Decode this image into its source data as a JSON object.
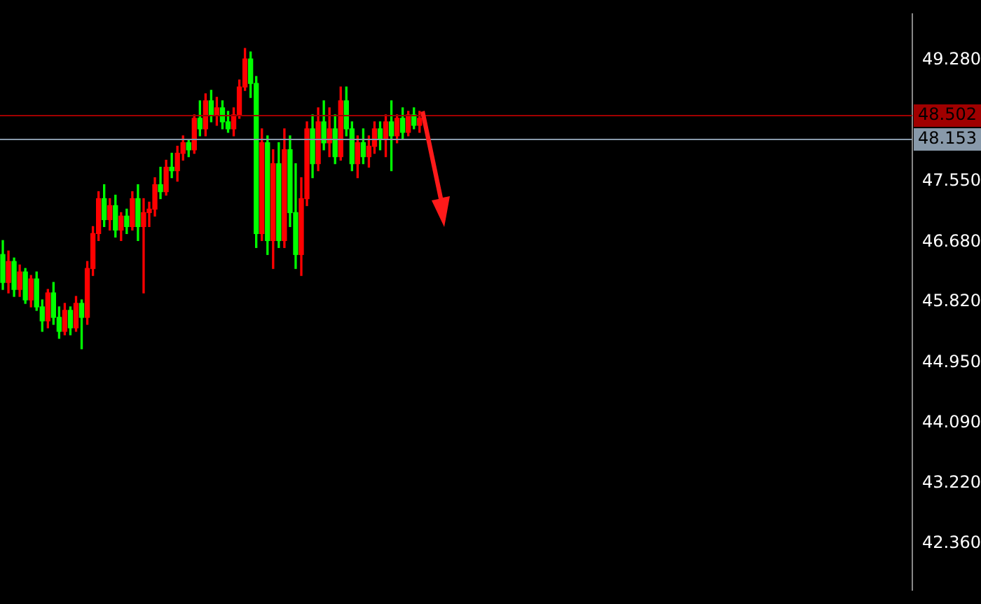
{
  "chart_data": {
    "type": "candlestick",
    "categories": [
      null,
      null,
      null,
      null,
      null,
      null,
      null,
      null,
      null,
      null,
      null,
      null,
      null,
      null,
      null,
      null,
      null,
      null,
      null,
      null,
      null,
      null,
      null,
      null,
      null,
      null,
      null,
      null,
      null,
      null,
      null,
      null,
      null,
      null,
      null,
      null,
      null,
      null,
      null,
      null,
      null,
      null,
      null,
      null,
      null,
      null,
      null,
      null,
      null,
      null,
      null,
      null,
      null,
      null,
      null,
      null,
      null,
      null,
      null,
      null,
      null,
      null,
      null,
      null,
      null,
      null,
      null,
      null,
      null,
      null,
      null,
      null,
      null,
      null,
      null,
      null,
      null,
      null,
      null,
      null,
      null,
      null,
      null,
      null,
      null,
      null,
      null,
      null,
      null,
      null,
      null,
      null,
      null,
      null,
      null,
      null,
      null,
      null,
      null,
      null,
      null,
      null,
      null,
      null,
      null,
      null,
      null,
      null,
      null,
      null,
      null,
      null,
      null,
      null,
      null,
      null,
      null,
      null,
      null,
      null,
      null,
      null,
      null,
      null,
      null,
      null,
      null,
      null,
      null,
      null,
      null,
      null,
      null,
      null,
      null,
      null,
      null,
      null,
      null,
      null,
      null,
      null,
      null,
      null,
      null,
      null,
      null,
      null,
      null,
      null,
      null,
      null,
      null,
      null,
      null,
      null,
      null,
      null,
      null,
      null,
      null,
      null
    ],
    "ohlc": [
      [
        46.5,
        46.7,
        46.0,
        46.1
      ],
      [
        46.1,
        46.55,
        45.95,
        46.4
      ],
      [
        46.4,
        46.45,
        45.9,
        46.0
      ],
      [
        46.0,
        46.35,
        45.9,
        46.25
      ],
      [
        46.25,
        46.3,
        45.8,
        45.85
      ],
      [
        45.85,
        46.2,
        45.75,
        46.15
      ],
      [
        46.15,
        46.25,
        45.7,
        45.75
      ],
      [
        45.75,
        45.85,
        45.4,
        45.55
      ],
      [
        45.55,
        46.0,
        45.45,
        45.95
      ],
      [
        45.95,
        46.1,
        45.5,
        45.6
      ],
      [
        45.6,
        45.75,
        45.3,
        45.4
      ],
      [
        45.4,
        45.8,
        45.35,
        45.7
      ],
      [
        45.7,
        45.75,
        45.35,
        45.45
      ],
      [
        45.45,
        45.9,
        45.4,
        45.8
      ],
      [
        45.8,
        45.85,
        45.15,
        45.6
      ],
      [
        45.6,
        46.4,
        45.5,
        46.3
      ],
      [
        46.3,
        46.9,
        46.2,
        46.8
      ],
      [
        46.8,
        47.4,
        46.7,
        47.3
      ],
      [
        47.3,
        47.5,
        46.9,
        47.0
      ],
      [
        47.0,
        47.3,
        46.85,
        47.2
      ],
      [
        47.2,
        47.35,
        46.75,
        46.85
      ],
      [
        46.85,
        47.1,
        46.7,
        47.05
      ],
      [
        47.05,
        47.15,
        46.8,
        46.9
      ],
      [
        46.9,
        47.4,
        46.85,
        47.3
      ],
      [
        47.3,
        47.5,
        46.7,
        46.9
      ],
      [
        46.9,
        47.3,
        45.95,
        47.1
      ],
      [
        47.1,
        47.25,
        46.9,
        47.15
      ],
      [
        47.15,
        47.6,
        47.05,
        47.5
      ],
      [
        47.5,
        47.75,
        47.3,
        47.4
      ],
      [
        47.4,
        47.85,
        47.35,
        47.75
      ],
      [
        47.75,
        47.95,
        47.6,
        47.7
      ],
      [
        47.7,
        48.05,
        47.55,
        47.95
      ],
      [
        47.95,
        48.2,
        47.85,
        48.1
      ],
      [
        48.1,
        48.15,
        47.9,
        48.0
      ],
      [
        48.0,
        48.5,
        47.95,
        48.45
      ],
      [
        48.45,
        48.7,
        48.2,
        48.3
      ],
      [
        48.3,
        48.8,
        48.2,
        48.7
      ],
      [
        48.7,
        48.85,
        48.4,
        48.5
      ],
      [
        48.5,
        48.75,
        48.35,
        48.6
      ],
      [
        48.6,
        48.7,
        48.3,
        48.4
      ],
      [
        48.4,
        48.55,
        48.25,
        48.3
      ],
      [
        48.3,
        48.6,
        48.2,
        48.5
      ],
      [
        48.5,
        49.0,
        48.45,
        48.9
      ],
      [
        48.9,
        49.45,
        48.85,
        49.3
      ],
      [
        49.3,
        49.4,
        48.75,
        48.95
      ],
      [
        48.95,
        49.05,
        46.6,
        46.8
      ],
      [
        46.8,
        48.3,
        46.7,
        48.1
      ],
      [
        48.1,
        48.2,
        46.5,
        46.7
      ],
      [
        46.7,
        48.0,
        46.3,
        47.8
      ],
      [
        47.8,
        48.1,
        46.6,
        46.7
      ],
      [
        46.7,
        48.3,
        46.6,
        48.0
      ],
      [
        48.0,
        48.2,
        46.9,
        47.1
      ],
      [
        47.1,
        47.8,
        46.3,
        46.5
      ],
      [
        46.5,
        47.6,
        46.2,
        47.3
      ],
      [
        47.3,
        48.4,
        47.2,
        48.3
      ],
      [
        48.3,
        48.5,
        47.6,
        47.8
      ],
      [
        47.8,
        48.6,
        47.7,
        48.4
      ],
      [
        48.4,
        48.7,
        48.0,
        48.1
      ],
      [
        48.1,
        48.6,
        47.9,
        48.3
      ],
      [
        48.3,
        48.5,
        47.8,
        47.9
      ],
      [
        47.9,
        48.9,
        47.85,
        48.7
      ],
      [
        48.7,
        48.9,
        48.2,
        48.3
      ],
      [
        48.3,
        48.4,
        47.7,
        47.8
      ],
      [
        47.8,
        48.2,
        47.6,
        48.1
      ],
      [
        48.1,
        48.3,
        47.8,
        47.9
      ],
      [
        47.9,
        48.2,
        47.75,
        48.05
      ],
      [
        48.05,
        48.4,
        47.95,
        48.3
      ],
      [
        48.3,
        48.4,
        48.0,
        48.15
      ],
      [
        48.15,
        48.5,
        47.9,
        48.4
      ],
      [
        48.4,
        48.7,
        47.7,
        48.2
      ],
      [
        48.2,
        48.5,
        48.1,
        48.45
      ],
      [
        48.45,
        48.6,
        48.15,
        48.25
      ],
      [
        48.25,
        48.55,
        48.2,
        48.5
      ],
      [
        48.5,
        48.6,
        48.3,
        48.35
      ],
      [
        48.35,
        48.55,
        48.25,
        48.45
      ],
      null,
      null,
      null,
      null,
      null,
      null,
      null,
      null,
      null,
      null,
      null,
      null,
      null,
      null,
      null,
      null,
      null,
      null,
      null,
      null,
      null,
      null,
      null,
      null,
      null,
      null,
      null,
      null,
      null,
      null,
      null,
      null,
      null,
      null,
      null,
      null,
      null,
      null,
      null,
      null,
      null,
      null,
      null,
      null,
      null,
      null,
      null,
      null,
      null,
      null,
      null,
      null,
      null,
      null,
      null,
      null,
      null,
      null,
      null,
      null,
      null,
      null,
      null,
      null,
      null,
      null,
      null,
      null,
      null,
      null,
      null,
      null,
      null,
      null,
      null,
      null,
      null,
      null,
      null,
      null,
      null,
      null,
      null,
      null,
      null,
      null,
      null
    ],
    "colors": [
      "#00ff00",
      "#ff0000",
      "#00ff00",
      "#ff0000",
      "#00ff00",
      "#ff0000",
      "#00ff00",
      "#00ff00",
      "#ff0000",
      "#00ff00",
      "#00ff00",
      "#ff0000",
      "#00ff00",
      "#ff0000",
      "#00ff00",
      "#ff0000",
      "#ff0000",
      "#ff0000",
      "#00ff00",
      "#ff0000",
      "#00ff00",
      "#ff0000",
      "#00ff00",
      "#ff0000",
      "#00ff00",
      "#ff0000",
      "#ff0000",
      "#ff0000",
      "#00ff00",
      "#ff0000",
      "#00ff00",
      "#ff0000",
      "#ff0000",
      "#00ff00",
      "#ff0000",
      "#00ff00",
      "#ff0000",
      "#00ff00",
      "#ff0000",
      "#00ff00",
      "#00ff00",
      "#ff0000",
      "#ff0000",
      "#ff0000",
      "#00ff00",
      "#00ff00",
      "#ff0000",
      "#00ff00",
      "#ff0000",
      "#00ff00",
      "#ff0000",
      "#00ff00",
      "#00ff00",
      "#ff0000",
      "#ff0000",
      "#00ff00",
      "#ff0000",
      "#00ff00",
      "#ff0000",
      "#00ff00",
      "#ff0000",
      "#00ff00",
      "#00ff00",
      "#ff0000",
      "#00ff00",
      "#ff0000",
      "#ff0000",
      "#00ff00",
      "#ff0000",
      "#00ff00",
      "#ff0000",
      "#00ff00",
      "#ff0000",
      "#00ff00",
      "#ff0000",
      null,
      null,
      null,
      null,
      null,
      null,
      null,
      null,
      null,
      null,
      null,
      null,
      null,
      null,
      null,
      null,
      null,
      null,
      null,
      null,
      null,
      null,
      null,
      null,
      null,
      null,
      null,
      null,
      null,
      null,
      null,
      null,
      null,
      null,
      null,
      null,
      null,
      null,
      null,
      null,
      null,
      null,
      null,
      null,
      null,
      null,
      null,
      null,
      null,
      null,
      null,
      null,
      null,
      null,
      null,
      null,
      null,
      null,
      null,
      null,
      null,
      null,
      null,
      null,
      null,
      null,
      null,
      null,
      null,
      null,
      null,
      null,
      null,
      null,
      null,
      null,
      null,
      null,
      null,
      null,
      null,
      null,
      null,
      null,
      null,
      null,
      null
    ],
    "ylim": [
      41.7,
      49.94
    ],
    "yticks": [
      {
        "value": 49.28,
        "label": "49.280"
      },
      {
        "value": 47.55,
        "label": "47.550"
      },
      {
        "value": 46.68,
        "label": "46.680"
      },
      {
        "value": 45.82,
        "label": "45.820"
      },
      {
        "value": 44.95,
        "label": "44.950"
      },
      {
        "value": 44.09,
        "label": "44.090"
      },
      {
        "value": 43.22,
        "label": "43.220"
      },
      {
        "value": 42.36,
        "label": "42.360"
      }
    ],
    "ref_lines": [
      {
        "axis": "y",
        "value": 48.502,
        "label": "48.502",
        "color": "#a00000"
      },
      {
        "axis": "y",
        "value": 48.153,
        "label": "48.153",
        "color": "#8899aa"
      }
    ],
    "tick_labels": "y",
    "grid": false,
    "legend": false
  }
}
